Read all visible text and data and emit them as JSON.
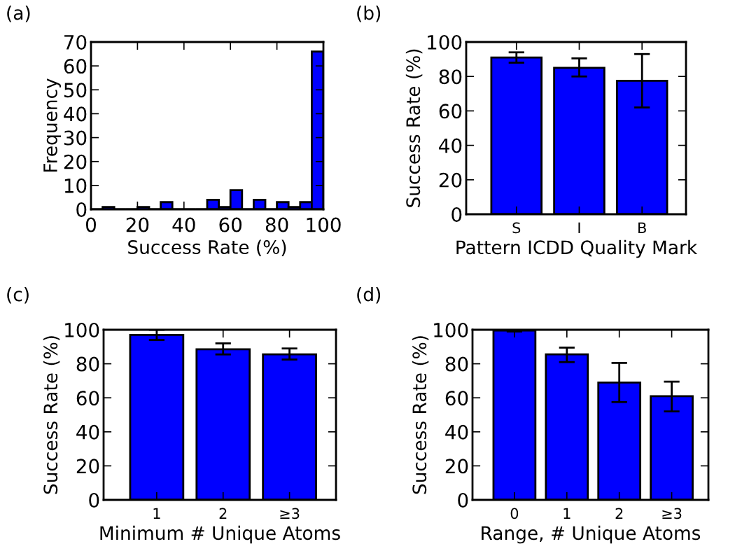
{
  "chart_data": [
    {
      "type": "histogram",
      "title": "(a)",
      "xlabel": "Success Rate (%)",
      "ylabel": "Frequency",
      "color": "#0000ff",
      "bins": [
        0,
        5,
        10,
        15,
        20,
        25,
        30,
        35,
        40,
        45,
        50,
        55,
        60,
        65,
        70,
        75,
        80,
        85,
        90,
        95,
        100
      ],
      "values": [
        0,
        1,
        0,
        0,
        1,
        0,
        3,
        0,
        0,
        0,
        4,
        1,
        8,
        0,
        4,
        0,
        3,
        1,
        3,
        66
      ],
      "xlim": [
        0,
        100
      ],
      "xticks": [
        0,
        20,
        40,
        60,
        80,
        100
      ],
      "ylim": [
        0,
        70
      ],
      "yticks": [
        0,
        10,
        20,
        30,
        40,
        50,
        60,
        70
      ],
      "grid": false
    },
    {
      "type": "bar",
      "title": "(b)",
      "xlabel": "Pattern ICDD Quality Mark",
      "ylabel": "Success Rate (%)",
      "color": "#0000ff",
      "categories": [
        "S",
        "I",
        "B"
      ],
      "values": [
        91,
        85,
        77.5
      ],
      "errors": [
        [
          88,
          94
        ],
        [
          80,
          90.5
        ],
        [
          62,
          93
        ]
      ],
      "ylim": [
        0,
        100
      ],
      "yticks": [
        0,
        20,
        40,
        60,
        80,
        100
      ],
      "grid": false
    },
    {
      "type": "bar",
      "title": "(c)",
      "xlabel": "Minimum # Unique Atoms",
      "ylabel": "Success Rate (%)",
      "color": "#0000ff",
      "categories": [
        "1",
        "2",
        "≥3"
      ],
      "values": [
        97,
        88.5,
        85.5
      ],
      "errors": [
        [
          94,
          100
        ],
        [
          85.5,
          92
        ],
        [
          82.5,
          89
        ]
      ],
      "ylim": [
        0,
        100
      ],
      "yticks": [
        0,
        20,
        40,
        60,
        80,
        100
      ],
      "grid": false
    },
    {
      "type": "bar",
      "title": "(d)",
      "xlabel": "Range, # Unique Atoms",
      "ylabel": "Success Rate (%)",
      "color": "#0000ff",
      "categories": [
        "0",
        "1",
        "2",
        "≥3"
      ],
      "values": [
        99.5,
        85.5,
        69,
        61
      ],
      "errors": [
        [
          99,
          100
        ],
        [
          81,
          89.5
        ],
        [
          57.5,
          80.5
        ],
        [
          52,
          69.5
        ]
      ],
      "ylim": [
        0,
        100
      ],
      "yticks": [
        0,
        20,
        40,
        60,
        80,
        100
      ],
      "grid": false
    }
  ]
}
